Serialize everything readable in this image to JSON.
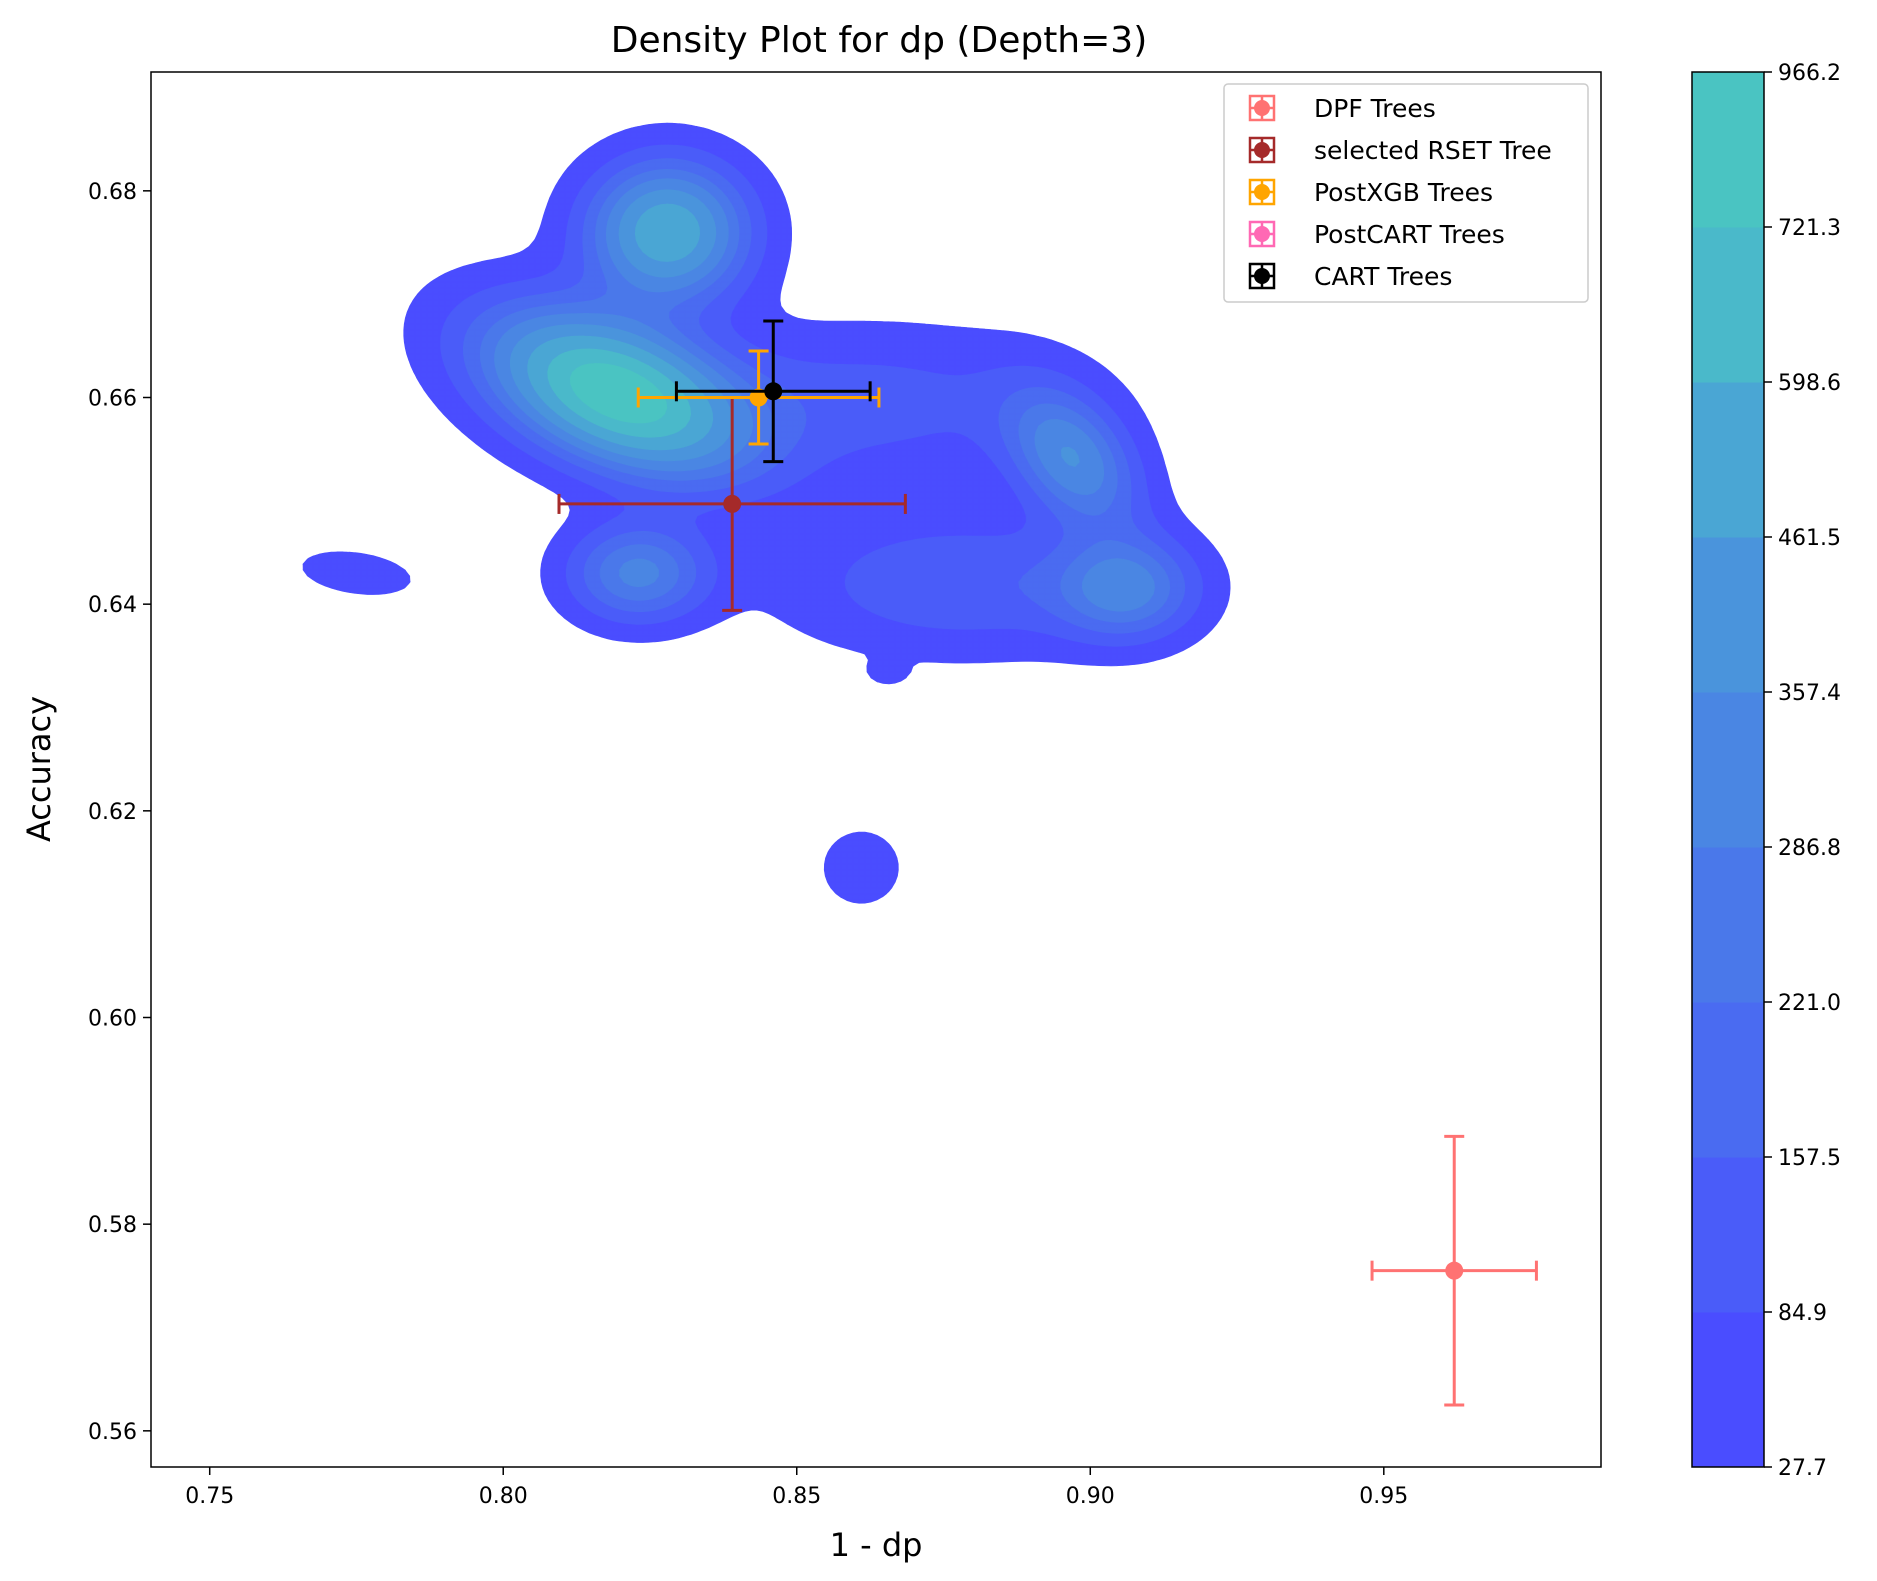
{
  "chart_data": {
    "type": "scatter",
    "title": "Density Plot for dp (Depth=3)",
    "xlabel": "1 - dp",
    "ylabel": "Accuracy",
    "xlim": [
      0.74,
      0.987
    ],
    "ylim": [
      0.5565,
      0.6915
    ],
    "x_ticks": [
      0.75,
      0.8,
      0.85,
      0.9,
      0.95
    ],
    "x_tick_labels": [
      "0.75",
      "0.80",
      "0.85",
      "0.90",
      "0.95"
    ],
    "y_ticks": [
      0.56,
      0.58,
      0.6,
      0.62,
      0.64,
      0.66,
      0.68
    ],
    "y_tick_labels": [
      "0.56",
      "0.58",
      "0.60",
      "0.62",
      "0.64",
      "0.66",
      "0.68"
    ],
    "grid": false,
    "legend_position": "top-right",
    "series": [
      {
        "name": "DPF Trees",
        "color": "#ff0000",
        "alpha": 0.55,
        "x": 0.962,
        "y": 0.5755,
        "xerr": 0.014,
        "yerr": 0.013
      },
      {
        "name": "selected RSET Tree",
        "color": "#a52a2a",
        "alpha": 1.0,
        "x": 0.839,
        "y": 0.6497,
        "xerr": 0.0295,
        "yerr": 0.0103
      },
      {
        "name": "PostXGB Trees",
        "color": "#ffa500",
        "alpha": 1.0,
        "x": 0.8435,
        "y": 0.66,
        "xerr": 0.0205,
        "yerr": 0.0045
      },
      {
        "name": "PostCART Trees",
        "color": "#ff69b4",
        "alpha": 1.0,
        "x": null,
        "y": null,
        "xerr": null,
        "yerr": null
      },
      {
        "name": "CART Trees",
        "color": "#000000",
        "alpha": 1.0,
        "x": 0.846,
        "y": 0.6606,
        "xerr": 0.0165,
        "yerr": 0.0068
      }
    ],
    "density": {
      "levels": [
        27.7,
        84.9,
        157.5,
        221.0,
        286.8,
        357.4,
        461.5,
        598.6,
        721.3,
        966.2
      ],
      "level_labels": [
        "27.7",
        "84.9",
        "157.5",
        "221.0",
        "286.8",
        "357.4",
        "461.5",
        "598.6",
        "721.3",
        "966.2"
      ],
      "colors": [
        "#4a4dff",
        "#4a5cf9",
        "#4a6bf1",
        "#4a78ea",
        "#4a86e3",
        "#4a94dc",
        "#4aa6d4",
        "#4ab9ca",
        "#4ac4c2",
        "#4ae4ab"
      ],
      "colorbar_position": "right",
      "peaks": [
        {
          "x": 0.819,
          "y": 0.6605,
          "sx": 0.0145,
          "sy": 0.0052,
          "rho": -0.45,
          "w": 1.0
        },
        {
          "x": 0.828,
          "y": 0.676,
          "sx": 0.009,
          "sy": 0.0045,
          "rho": 0.0,
          "w": 0.72
        },
        {
          "x": 0.823,
          "y": 0.643,
          "sx": 0.008,
          "sy": 0.0032,
          "rho": 0.0,
          "w": 0.4
        },
        {
          "x": 0.897,
          "y": 0.654,
          "sx": 0.0075,
          "sy": 0.0045,
          "rho": -0.4,
          "w": 0.45
        },
        {
          "x": 0.906,
          "y": 0.6415,
          "sx": 0.008,
          "sy": 0.0033,
          "rho": 0.0,
          "w": 0.38
        },
        {
          "x": 0.862,
          "y": 0.6595,
          "sx": 0.024,
          "sy": 0.005,
          "rho": 0.0,
          "w": 0.16
        },
        {
          "x": 0.775,
          "y": 0.643,
          "sx": 0.008,
          "sy": 0.0018,
          "rho": -0.3,
          "w": 0.09
        },
        {
          "x": 0.861,
          "y": 0.6145,
          "sx": 0.0055,
          "sy": 0.003,
          "rho": 0.0,
          "w": 0.09
        },
        {
          "x": 0.8655,
          "y": 0.6334,
          "sx": 0.0022,
          "sy": 0.0008,
          "rho": 0.0,
          "w": 0.08
        },
        {
          "x": 0.878,
          "y": 0.642,
          "sx": 0.02,
          "sy": 0.0045,
          "rho": 0.0,
          "w": 0.2
        }
      ]
    }
  }
}
